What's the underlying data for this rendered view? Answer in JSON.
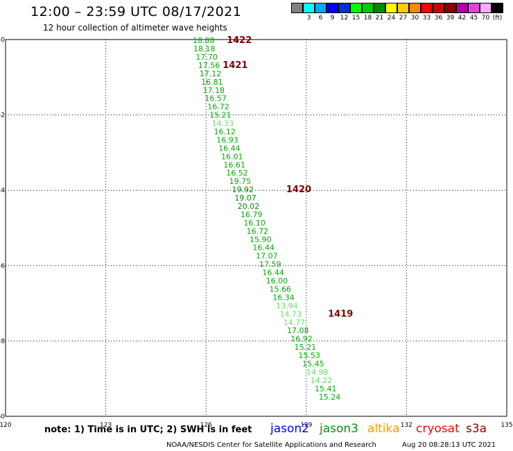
{
  "header": {
    "title": "12:00 – 23:59 UTC 08/17/2021",
    "subtitle": "12 hour collection of altimeter wave heights"
  },
  "legend": {
    "swatches": [
      {
        "color": "#808080",
        "label": ""
      },
      {
        "color": "#00ffff",
        "label": "3"
      },
      {
        "color": "#00aaff",
        "label": "6"
      },
      {
        "color": "#0000ff",
        "label": "9"
      },
      {
        "color": "#0033cc",
        "label": "12"
      },
      {
        "color": "#00ff00",
        "label": "15"
      },
      {
        "color": "#00cc00",
        "label": "18"
      },
      {
        "color": "#008800",
        "label": "21"
      },
      {
        "color": "#ffff00",
        "label": "24"
      },
      {
        "color": "#ffcc00",
        "label": "27"
      },
      {
        "color": "#ff8800",
        "label": "30"
      },
      {
        "color": "#ff0000",
        "label": "33"
      },
      {
        "color": "#cc0000",
        "label": "36"
      },
      {
        "color": "#880000",
        "label": "39"
      },
      {
        "color": "#aa00aa",
        "label": "42"
      },
      {
        "color": "#dd44dd",
        "label": "45"
      },
      {
        "color": "#ffaaff",
        "label": "70"
      },
      {
        "color": "#000000",
        "label": "(ft)"
      }
    ]
  },
  "chart_data": {
    "type": "scatter",
    "xlim": [
      120,
      135
    ],
    "ylim": [
      -60,
      -50
    ],
    "x_ticks": [
      "120",
      "123",
      "126",
      "129",
      "132",
      "135"
    ],
    "y_ticks": [
      "-50",
      "-52",
      "-54",
      "-56",
      "-58",
      "-60"
    ],
    "grid": true,
    "points": [
      {
        "lon": 125.93,
        "lat": -50.02,
        "label": "18.88",
        "color": "#00aa00"
      },
      {
        "lon": 125.95,
        "lat": -50.24,
        "label": "18.18",
        "color": "#00aa00"
      },
      {
        "lon": 126.02,
        "lat": -50.46,
        "label": "17.70",
        "color": "#00aa00"
      },
      {
        "lon": 126.09,
        "lat": -50.68,
        "label": "17.56",
        "color": "#00aa00"
      },
      {
        "lon": 126.13,
        "lat": -50.9,
        "label": "17.12",
        "color": "#00aa00"
      },
      {
        "lon": 126.18,
        "lat": -51.12,
        "label": "16.81",
        "color": "#00aa00"
      },
      {
        "lon": 126.23,
        "lat": -51.34,
        "label": "17.18",
        "color": "#00aa00"
      },
      {
        "lon": 126.29,
        "lat": -51.56,
        "label": "16.57",
        "color": "#00aa00"
      },
      {
        "lon": 126.37,
        "lat": -51.78,
        "label": "16.72",
        "color": "#00aa00"
      },
      {
        "lon": 126.43,
        "lat": -52.0,
        "label": "15.21",
        "color": "#00aa00"
      },
      {
        "lon": 126.5,
        "lat": -52.22,
        "label": "14.33",
        "color": "#66dd66"
      },
      {
        "lon": 126.56,
        "lat": -52.44,
        "label": "16.12",
        "color": "#00aa00"
      },
      {
        "lon": 126.64,
        "lat": -52.66,
        "label": "16.93",
        "color": "#00aa00"
      },
      {
        "lon": 126.7,
        "lat": -52.88,
        "label": "16.44",
        "color": "#00aa00"
      },
      {
        "lon": 126.78,
        "lat": -53.1,
        "label": "16.01",
        "color": "#00aa00"
      },
      {
        "lon": 126.85,
        "lat": -53.32,
        "label": "16.61",
        "color": "#00aa00"
      },
      {
        "lon": 126.93,
        "lat": -53.54,
        "label": "16.52",
        "color": "#00aa00"
      },
      {
        "lon": 127.02,
        "lat": -53.76,
        "label": "19.75",
        "color": "#00aa00"
      },
      {
        "lon": 127.1,
        "lat": -53.98,
        "label": "19.92",
        "color": "#008800"
      },
      {
        "lon": 127.18,
        "lat": -54.2,
        "label": "19.07",
        "color": "#008800"
      },
      {
        "lon": 127.27,
        "lat": -54.42,
        "label": "20.02",
        "color": "#008800"
      },
      {
        "lon": 127.36,
        "lat": -54.64,
        "label": "16.79",
        "color": "#00aa00"
      },
      {
        "lon": 127.45,
        "lat": -54.86,
        "label": "16.10",
        "color": "#00aa00"
      },
      {
        "lon": 127.54,
        "lat": -55.08,
        "label": "16.72",
        "color": "#00aa00"
      },
      {
        "lon": 127.63,
        "lat": -55.3,
        "label": "15.90",
        "color": "#00aa00"
      },
      {
        "lon": 127.72,
        "lat": -55.52,
        "label": "16.44",
        "color": "#00aa00"
      },
      {
        "lon": 127.82,
        "lat": -55.74,
        "label": "17.07",
        "color": "#00aa00"
      },
      {
        "lon": 127.92,
        "lat": -55.96,
        "label": "17.59",
        "color": "#00aa00"
      },
      {
        "lon": 128.01,
        "lat": -56.18,
        "label": "16.44",
        "color": "#00aa00"
      },
      {
        "lon": 128.12,
        "lat": -56.4,
        "label": "16.00",
        "color": "#00aa00"
      },
      {
        "lon": 128.22,
        "lat": -56.62,
        "label": "15.66",
        "color": "#00aa00"
      },
      {
        "lon": 128.32,
        "lat": -56.84,
        "label": "16.34",
        "color": "#00aa00"
      },
      {
        "lon": 128.42,
        "lat": -57.06,
        "label": "13.94",
        "color": "#66dd66"
      },
      {
        "lon": 128.53,
        "lat": -57.28,
        "label": "14.73",
        "color": "#66dd66"
      },
      {
        "lon": 128.64,
        "lat": -57.5,
        "label": "14.77",
        "color": "#66dd66"
      },
      {
        "lon": 128.75,
        "lat": -57.72,
        "label": "17.08",
        "color": "#00aa00"
      },
      {
        "lon": 128.86,
        "lat": -57.94,
        "label": "16.92",
        "color": "#00aa00"
      },
      {
        "lon": 128.97,
        "lat": -58.16,
        "label": "15.21",
        "color": "#00aa00"
      },
      {
        "lon": 129.09,
        "lat": -58.38,
        "label": "15.53",
        "color": "#00aa00"
      },
      {
        "lon": 129.21,
        "lat": -58.6,
        "label": "15.45",
        "color": "#00aa00"
      },
      {
        "lon": 129.33,
        "lat": -58.82,
        "label": "14.98",
        "color": "#66dd66"
      },
      {
        "lon": 129.45,
        "lat": -59.04,
        "label": "14.22",
        "color": "#66dd66"
      },
      {
        "lon": 129.58,
        "lat": -59.26,
        "label": "15.41",
        "color": "#00aa00"
      },
      {
        "lon": 129.7,
        "lat": -59.48,
        "label": "15.24",
        "color": "#00aa00"
      }
    ],
    "time_labels": [
      {
        "lon": 126.62,
        "lat": -50.02,
        "label": "1422"
      },
      {
        "lon": 126.5,
        "lat": -50.68,
        "label": "1421"
      },
      {
        "lon": 128.4,
        "lat": -53.98,
        "label": "1420"
      },
      {
        "lon": 129.65,
        "lat": -57.28,
        "label": "1419"
      }
    ]
  },
  "note": "note: 1) Time is in UTC; 2) SWH is in feet",
  "satellites": [
    {
      "name": "jason2",
      "color": "#0000ff"
    },
    {
      "name": "jason3",
      "color": "#009900"
    },
    {
      "name": "altika",
      "color": "#ff9900"
    },
    {
      "name": "cryosat",
      "color": "#ff0000"
    },
    {
      "name": "s3a",
      "color": "#880000"
    }
  ],
  "footer": {
    "org": "NOAA/NESDIS Center for Satellite Applications and Research",
    "timestamp": "Aug 20 08:28:13 UTC 2021"
  }
}
